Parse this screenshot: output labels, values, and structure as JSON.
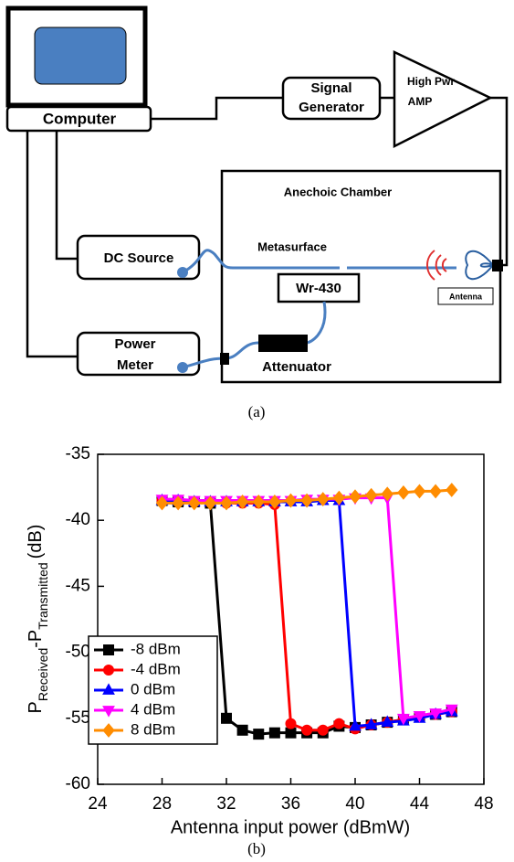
{
  "diagram": {
    "computer": "Computer",
    "signal_generator": [
      "Signal",
      "Generator"
    ],
    "amplifier": [
      "High Pwr",
      "AMP"
    ],
    "chamber": "Anechoic Chamber",
    "dc_source": "DC Source",
    "metasurface": "Metasurface",
    "waveguide": "Wr-430",
    "antenna": "Antenna",
    "power_meter": [
      "Power",
      "Meter"
    ],
    "attenuator": "Attenuator",
    "caption": "(a)"
  },
  "chart_data": {
    "type": "line",
    "caption": "(b)",
    "xlabel": "Antenna input power (dBmW)",
    "ylabel": [
      "P",
      "Received",
      "-P",
      "Transmitted",
      "(dB)"
    ],
    "xlim": [
      24,
      48
    ],
    "xticks": [
      24,
      28,
      32,
      36,
      40,
      44,
      48
    ],
    "ylim": [
      -60,
      -35
    ],
    "yticks": [
      -60,
      -55,
      -50,
      -45,
      -40,
      -35
    ],
    "legend": "lower left",
    "x": [
      28,
      29,
      30,
      31,
      32,
      33,
      34,
      35,
      36,
      37,
      38,
      39,
      40,
      41,
      42,
      43,
      44,
      45,
      46
    ],
    "series": [
      {
        "name": "-8 dBm",
        "color": "#000000",
        "marker": "square",
        "values": [
          -38.5,
          -38.6,
          -38.6,
          -38.7,
          -55,
          -55.9,
          -56.2,
          -56.1,
          -56.1,
          -56.1,
          -56.1,
          -55.6,
          -55.7,
          -55.5,
          -55.3,
          -55.1,
          -54.9,
          -54.7,
          -54.5
        ]
      },
      {
        "name": "-4 dBm",
        "color": "#ff0000",
        "marker": "circle",
        "values": [
          -38.5,
          -38.6,
          -38.6,
          -38.6,
          -38.7,
          -38.7,
          -38.7,
          -38.8,
          -55.4,
          -55.9,
          -55.9,
          -55.4,
          -55.8,
          -55.5,
          -55.3,
          -55.1,
          -54.9,
          -54.7,
          -54.5
        ]
      },
      {
        "name": "0 dBm",
        "color": "#0000ff",
        "marker": "triangle",
        "values": [
          -38.5,
          -38.5,
          -38.6,
          -38.6,
          -38.6,
          -38.6,
          -38.6,
          -38.6,
          -38.6,
          -38.6,
          -38.5,
          -38.5,
          -55.6,
          -55.5,
          -55.3,
          -55.2,
          -55,
          -54.7,
          -54.5
        ]
      },
      {
        "name": "4 dBm",
        "color": "#ff00ff",
        "marker": "triangle-down",
        "values": [
          -38.4,
          -38.4,
          -38.5,
          -38.5,
          -38.5,
          -38.5,
          -38.5,
          -38.5,
          -38.5,
          -38.4,
          -38.4,
          -38.4,
          -38.3,
          -38.3,
          -38.3,
          -55,
          -54.8,
          -54.6,
          -54.3
        ]
      },
      {
        "name": "8 dBm",
        "color": "#ff8c00",
        "marker": "diamond",
        "values": [
          -38.7,
          -38.7,
          -38.7,
          -38.7,
          -38.7,
          -38.6,
          -38.6,
          -38.6,
          -38.5,
          -38.5,
          -38.4,
          -38.3,
          -38.2,
          -38.1,
          -38,
          -37.9,
          -37.8,
          -37.8,
          -37.7
        ]
      }
    ]
  }
}
